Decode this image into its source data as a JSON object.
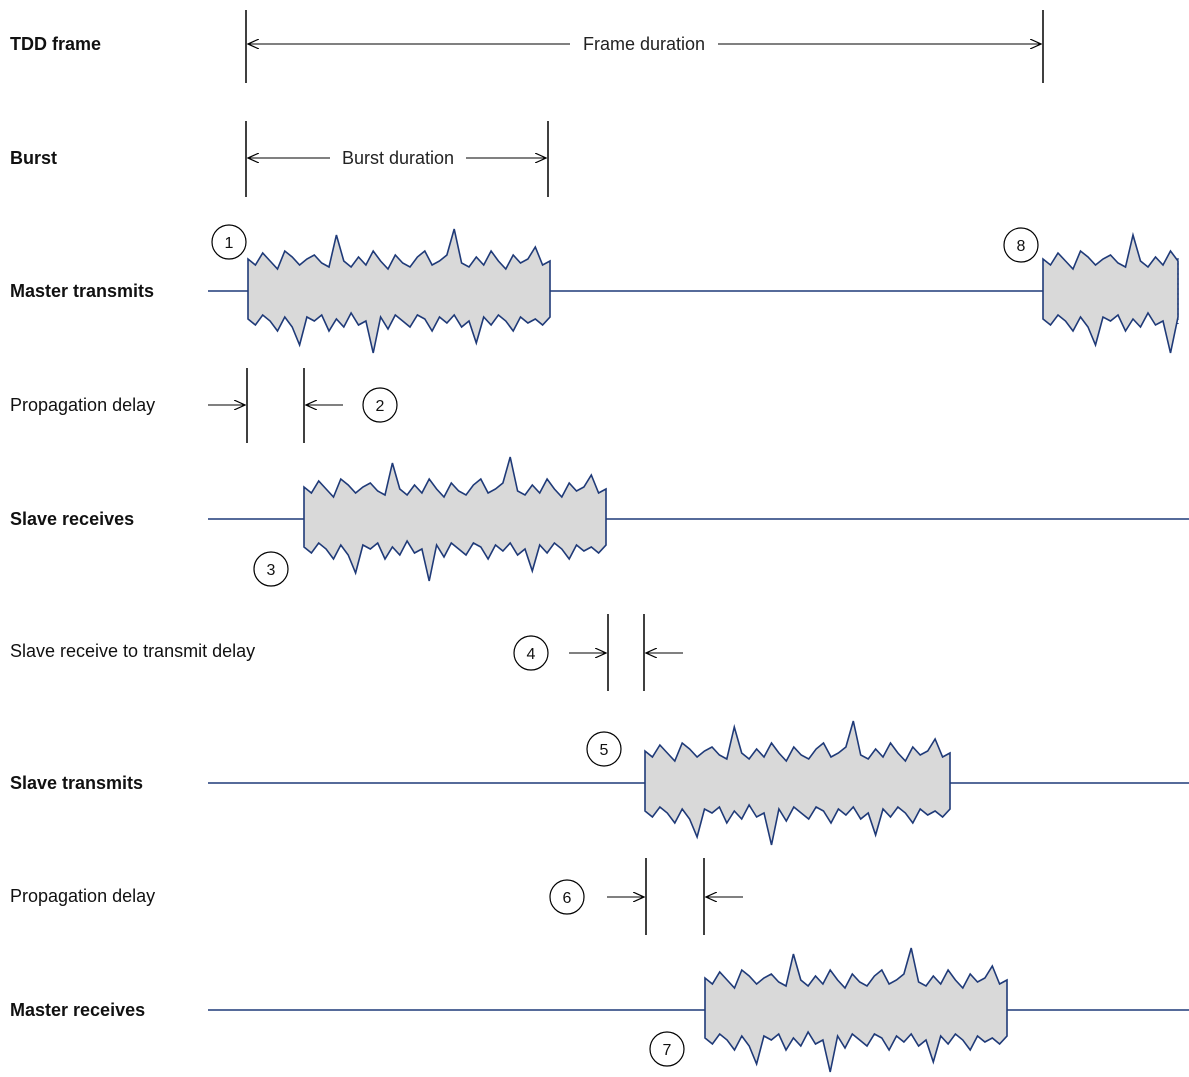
{
  "rows": {
    "tdd_frame": "TDD frame",
    "burst": "Burst",
    "master_transmits": "Master transmits",
    "propagation_delay_1": "Propagation delay",
    "slave_receives": "Slave receives",
    "slave_rx_tx_delay": "Slave receive to transmit delay",
    "slave_transmits": "Slave transmits",
    "propagation_delay_2": "Propagation delay",
    "master_receives": "Master receives"
  },
  "dimensions": {
    "frame_duration": "Frame duration",
    "burst_duration": "Burst duration"
  },
  "steps": [
    "1",
    "2",
    "3",
    "4",
    "5",
    "6",
    "7",
    "8"
  ],
  "colors": {
    "signal_line": "#1f3a78",
    "burst_fill": "#d9d9d9",
    "dimension_line": "#000000"
  }
}
